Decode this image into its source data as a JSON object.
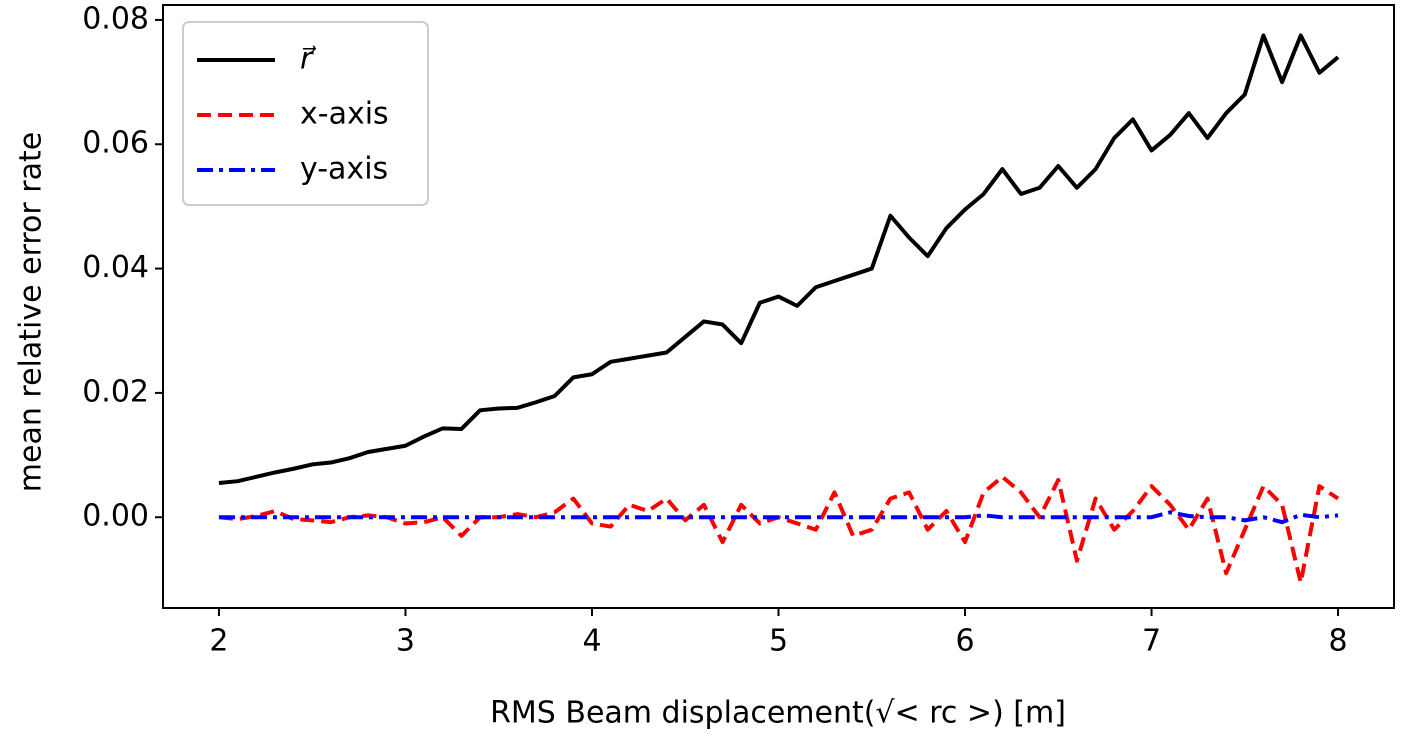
{
  "chart_data": {
    "type": "line",
    "xlabel": "RMS Beam displacement(√< rc >) [m]",
    "ylabel": "mean relative error rate",
    "x": [
      2.0,
      2.1,
      2.2,
      2.3,
      2.4,
      2.5,
      2.6,
      2.7,
      2.8,
      2.9,
      3.0,
      3.1,
      3.2,
      3.3,
      3.4,
      3.5,
      3.6,
      3.7,
      3.8,
      3.9,
      4.0,
      4.1,
      4.2,
      4.3,
      4.4,
      4.5,
      4.6,
      4.7,
      4.8,
      4.9,
      5.0,
      5.1,
      5.2,
      5.3,
      5.4,
      5.5,
      5.6,
      5.7,
      5.8,
      5.9,
      6.0,
      6.1,
      6.2,
      6.3,
      6.4,
      6.5,
      6.6,
      6.7,
      6.8,
      6.9,
      7.0,
      7.1,
      7.2,
      7.3,
      7.4,
      7.5,
      7.6,
      7.7,
      7.8,
      7.9,
      8.0
    ],
    "series": [
      {
        "name": "r⃗",
        "color": "#000000",
        "linestyle": "solid",
        "values": [
          0.0055,
          0.0058,
          0.0065,
          0.0072,
          0.0078,
          0.0085,
          0.0088,
          0.0095,
          0.0105,
          0.011,
          0.0115,
          0.013,
          0.0143,
          0.0142,
          0.0172,
          0.0175,
          0.0176,
          0.0185,
          0.0195,
          0.0225,
          0.023,
          0.025,
          0.0255,
          0.026,
          0.0265,
          0.029,
          0.0315,
          0.031,
          0.028,
          0.0345,
          0.0355,
          0.034,
          0.037,
          0.038,
          0.039,
          0.04,
          0.0485,
          0.045,
          0.042,
          0.0465,
          0.0495,
          0.052,
          0.056,
          0.052,
          0.053,
          0.0565,
          0.053,
          0.056,
          0.061,
          0.064,
          0.059,
          0.0615,
          0.065,
          0.061,
          0.065,
          0.068,
          0.0775,
          0.07,
          0.0775,
          0.0715,
          0.074
        ]
      },
      {
        "name": "x-axis",
        "color": "#ff0000",
        "linestyle": "dashed",
        "values": [
          0,
          -0.0003,
          0.0002,
          0.001,
          -0.0003,
          -0.0005,
          -0.0008,
          0,
          0.0003,
          0,
          -0.001,
          -0.0008,
          0,
          -0.003,
          0,
          0,
          0.0005,
          0,
          0.0008,
          0.003,
          -0.001,
          -0.0015,
          0.002,
          0.001,
          0.003,
          -0.0005,
          0.002,
          -0.004,
          0.002,
          -0.001,
          0,
          -0.001,
          -0.002,
          0.004,
          -0.003,
          -0.002,
          0.003,
          0.004,
          -0.002,
          0.001,
          -0.004,
          0.004,
          0.0065,
          0.004,
          0,
          0.006,
          -0.007,
          0.003,
          -0.002,
          0.001,
          0.005,
          0.002,
          -0.002,
          0.003,
          -0.009,
          -0.002,
          0.005,
          0.002,
          -0.0105,
          0.005,
          0.003
        ]
      },
      {
        "name": "y-axis",
        "color": "#0000ff",
        "linestyle": "dashdot",
        "values": [
          0,
          0,
          0,
          0,
          0,
          0,
          0,
          0,
          0,
          0,
          0,
          0,
          0,
          0,
          0,
          0,
          0,
          0,
          0,
          0,
          0,
          0,
          0,
          0,
          0,
          0,
          0,
          0,
          0,
          0,
          0,
          0,
          0,
          0,
          0,
          0,
          0,
          0,
          0,
          0,
          0,
          0.0003,
          0,
          0,
          0,
          0,
          0,
          0,
          0,
          0,
          0,
          0.0008,
          0.0002,
          0,
          0,
          -0.0005,
          0,
          -0.0008,
          0.0004,
          0,
          0.0003
        ]
      }
    ],
    "xlim": [
      1.7,
      8.3
    ],
    "xticks": [
      2,
      3,
      4,
      5,
      6,
      7,
      8
    ],
    "ylim": [
      -0.0146,
      0.0824
    ],
    "yticks": [
      {
        "value": 0,
        "label": "0.00"
      },
      {
        "value": 0.02,
        "label": "0.02"
      },
      {
        "value": 0.04,
        "label": "0.04"
      },
      {
        "value": 0.06,
        "label": "0.06"
      },
      {
        "value": 0.08,
        "label": "0.08"
      }
    ],
    "legend": "upper left",
    "grid": false
  }
}
